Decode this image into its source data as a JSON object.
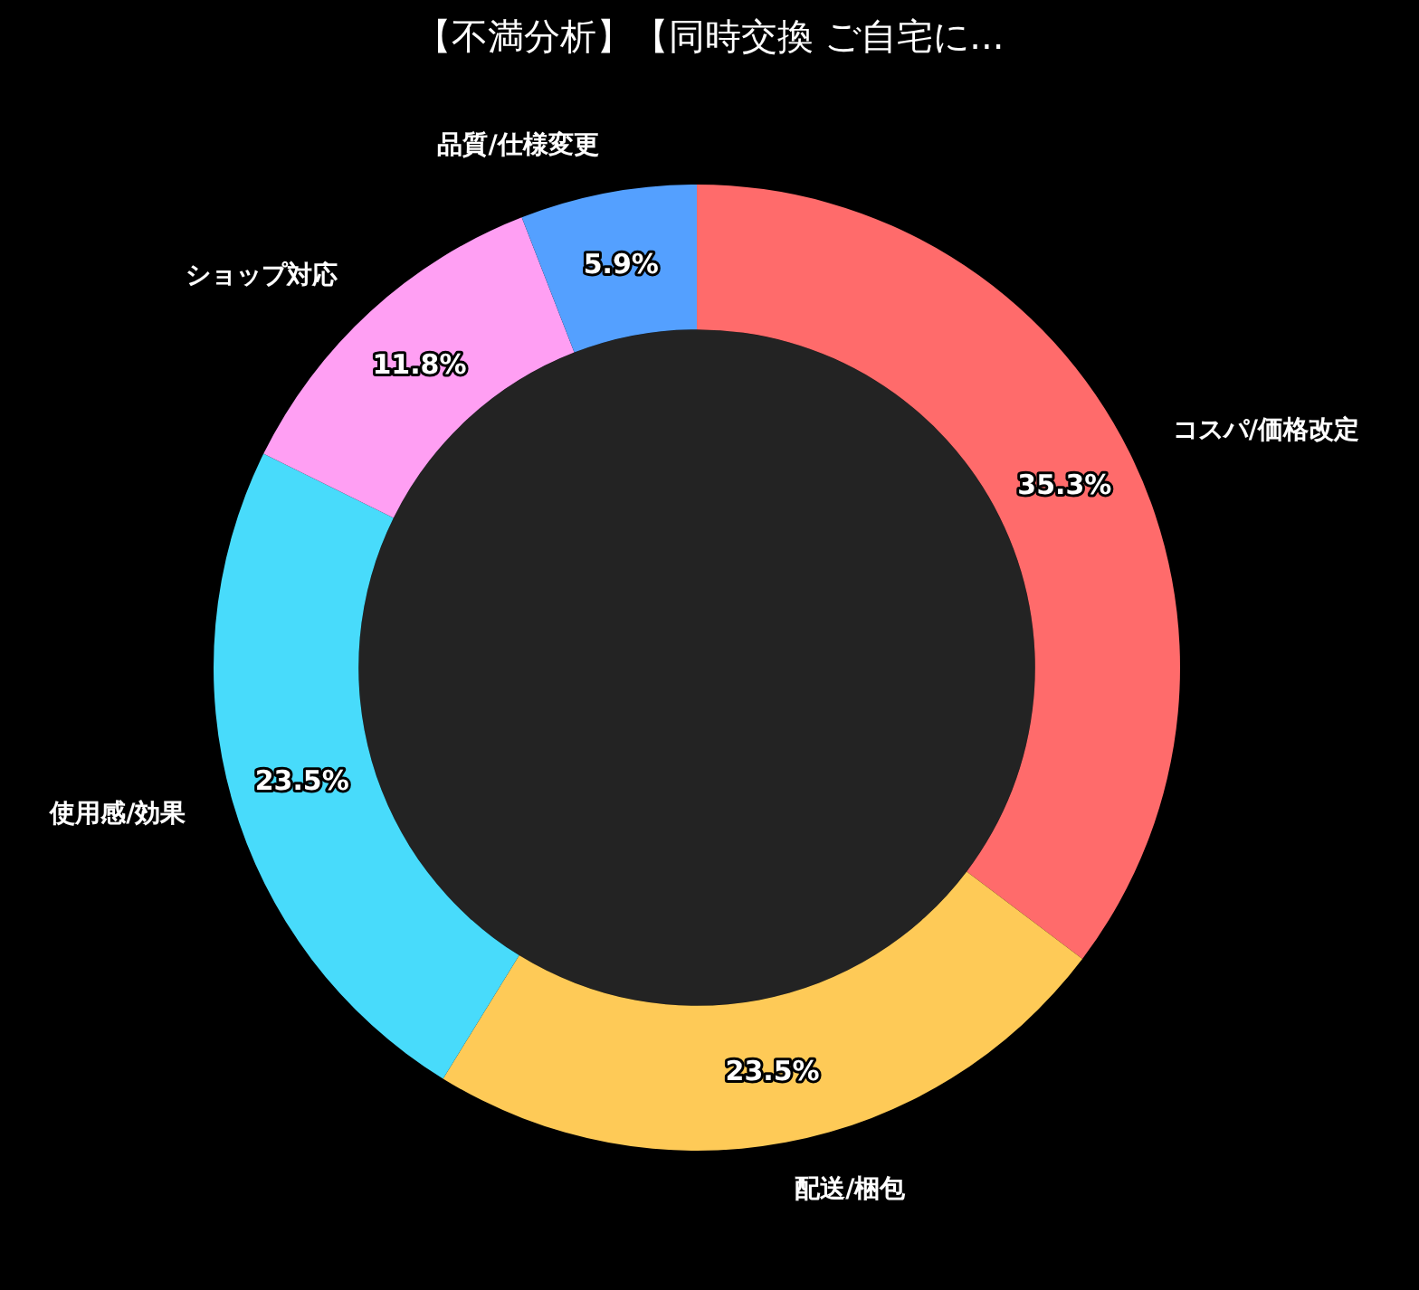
{
  "chart_data": {
    "type": "donut",
    "title": "【不満分析】【同時交換 ご自宅に...",
    "categories": [
      "コスパ/価格改定",
      "配送/梱包",
      "使用感/効果",
      "ショップ対応",
      "品質/仕様変更"
    ],
    "values": [
      35.3,
      23.5,
      23.5,
      11.8,
      5.9
    ],
    "colors": [
      "#ff6b6b",
      "#feca57",
      "#48dbfb",
      "#ff9ff3",
      "#54a0ff"
    ],
    "value_labels": [
      "35.3%",
      "23.5%",
      "23.5%",
      "11.8%",
      "5.9%"
    ]
  }
}
